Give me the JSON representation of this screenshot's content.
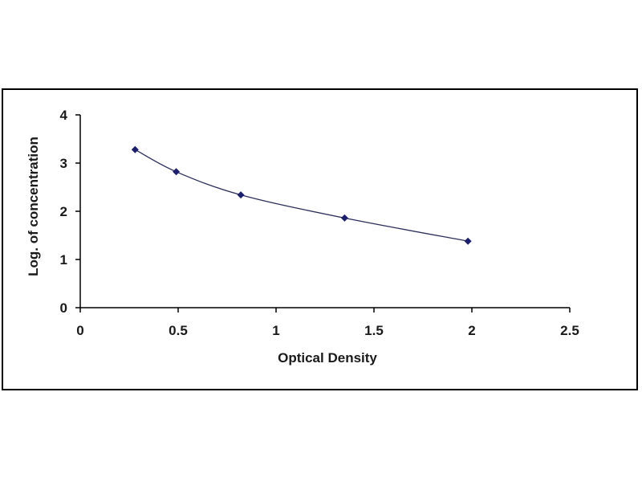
{
  "chart_data": {
    "type": "scatter",
    "title": "",
    "xlabel": "Optical Density",
    "ylabel": "Log. of concentration",
    "xlim": [
      0,
      2.5
    ],
    "ylim": [
      0,
      4
    ],
    "x_ticks": [
      "0",
      "0.5",
      "1",
      "1.5",
      "2",
      "2.5"
    ],
    "y_ticks": [
      "0",
      "1",
      "2",
      "3",
      "4"
    ],
    "grid": false,
    "legend": "none",
    "series": [
      {
        "x": [
          0.28,
          0.49,
          0.82,
          1.35,
          1.98
        ],
        "y": [
          3.28,
          2.82,
          2.34,
          1.86,
          1.38
        ]
      }
    ],
    "fit_curve": "smooth decreasing",
    "colors": {
      "points": "#1c1f6e",
      "curve": "#2b2f5a",
      "frame": "#000000"
    }
  }
}
